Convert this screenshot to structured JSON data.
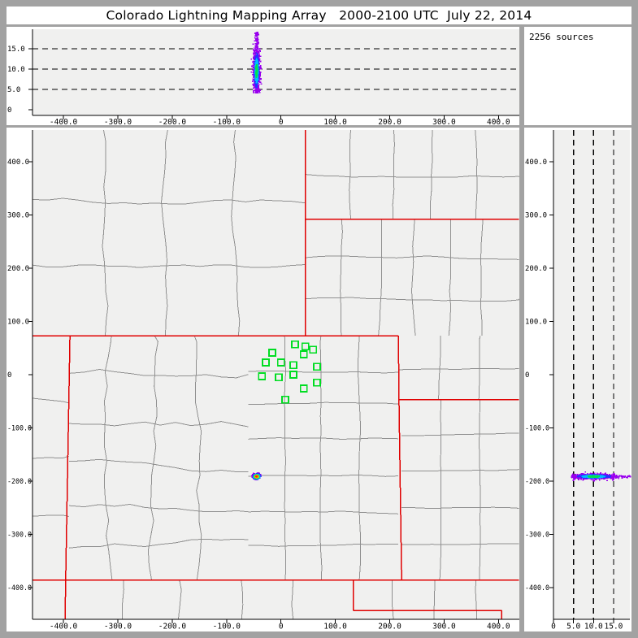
{
  "window": {
    "title": "Colorado Lightning Mapping Array   2000-2100 UTC  July 22, 2014"
  },
  "sources": {
    "label": "2256 sources",
    "count": 2256
  },
  "colors": {
    "frame_gray": "#a2a2a2",
    "panel_white": "#ffffff",
    "plot_bg": "#f0f0ef",
    "axis_black": "#000000",
    "county_gray": "#8f8f8f",
    "state_border_red": "#e00000",
    "station_green": "#00dd22",
    "density_palette": [
      "#9900ee",
      "#2233ff",
      "#00bbff",
      "#00e050",
      "#d8e000",
      "#ff9900",
      "#ff2a00"
    ]
  },
  "chart_data": {
    "type": "scatter",
    "description": "Lightning mapping array source density plots: top = altitude vs east-west km, main = plan view map with county/state borders and station markers, right = north-south km vs altitude.",
    "panels": [
      {
        "id": "altitude-vs-ew",
        "x_range_km": [
          -457,
          438
        ],
        "alt_range_km": [
          -1.6,
          19.6
        ],
        "x_ticks": {
          "values": [
            -400,
            -300,
            -200,
            -100,
            0,
            100,
            200,
            300,
            400
          ],
          "labels": [
            "-400.0",
            "-300.0",
            "-200.0",
            "-100.0",
            "0",
            "100.0",
            "200.0",
            "300.0",
            "400.0"
          ]
        },
        "alt_ticks": {
          "values": [
            0,
            5,
            10,
            15
          ],
          "labels": [
            "0",
            "5.0",
            "10.0",
            "15.0"
          ]
        },
        "dashed_gridlines_alt": [
          5,
          10,
          15
        ]
      },
      {
        "id": "plan-view",
        "x_range_km": [
          -457,
          438
        ],
        "y_range_km": [
          -460,
          460
        ],
        "x_ticks": {
          "values": [
            -400,
            -300,
            -200,
            -100,
            0,
            100,
            200,
            300,
            400
          ],
          "labels": [
            "-400.0",
            "-300.0",
            "-200.0",
            "-100.0",
            "0",
            "100.0",
            "200.0",
            "300.0",
            "400.0"
          ]
        },
        "y_ticks": {
          "values": [
            400,
            300,
            200,
            100,
            0,
            -100,
            -200,
            -300,
            -400
          ],
          "labels": [
            "400.0",
            "300.0",
            "200.0",
            "100.0",
            "0",
            "-100.0",
            "-200.0",
            "-300.0",
            "-400.0"
          ]
        }
      },
      {
        "id": "altitude-vs-ns",
        "alt_range_km": [
          0,
          19.2
        ],
        "y_range_km": [
          -460,
          460
        ],
        "alt_ticks": {
          "values": [
            0,
            5,
            10,
            15
          ],
          "labels": [
            "0",
            "5.0",
            "10.0",
            "15.0"
          ]
        },
        "y_ticks": {
          "values": [
            400,
            300,
            200,
            100,
            0,
            -100,
            -200,
            -300,
            -400
          ],
          "labels": [
            "400.0",
            "300.0",
            "200.0",
            "100.0",
            "0",
            "-100.0",
            "-200.0",
            "-300.0",
            "-400.0"
          ]
        },
        "dashed_gridlines_alt": [
          5,
          10,
          15
        ]
      }
    ],
    "lightning_flash": {
      "x_km": -46,
      "y_km": -190,
      "alt_km": 9.8,
      "x_sigma_km": 3.0,
      "y_sigma_km": 2.3,
      "alt_sigma_km": 2.7,
      "alt_min_km": 4.3,
      "alt_max_km": 19.3,
      "sparse_high_fraction": 0.05,
      "n_points": {
        "top": 880,
        "plan": 496,
        "right": 880
      },
      "total_sources": 2256,
      "seed": 42
    },
    "stations_km": [
      [
        26,
        57
      ],
      [
        45,
        53
      ],
      [
        59,
        47
      ],
      [
        -16,
        41
      ],
      [
        42,
        38
      ],
      [
        -28,
        23
      ],
      [
        0,
        23
      ],
      [
        23,
        18
      ],
      [
        66,
        15
      ],
      [
        -35,
        -3
      ],
      [
        -4,
        -5
      ],
      [
        23,
        0
      ],
      [
        66,
        -15
      ],
      [
        42,
        -26
      ],
      [
        8,
        -47
      ]
    ],
    "state_borders_km": [
      [
        [
          45,
          460
        ],
        [
          45,
          73
        ]
      ],
      [
        [
          45,
          292
        ],
        [
          438,
          292
        ]
      ],
      [
        [
          -457,
          73
        ],
        [
          216,
          73
        ]
      ],
      [
        [
          216,
          73
        ],
        [
          217,
          -47
        ]
      ],
      [
        [
          217,
          -47
        ],
        [
          438,
          -47
        ]
      ],
      [
        [
          217,
          -47
        ],
        [
          222,
          -386
        ]
      ],
      [
        [
          -388,
          73
        ],
        [
          -396,
          -386
        ]
      ],
      [
        [
          -396,
          -386
        ],
        [
          -397,
          -460
        ]
      ],
      [
        [
          -457,
          -386
        ],
        [
          438,
          -386
        ]
      ],
      [
        [
          133,
          -386
        ],
        [
          133,
          -443
        ]
      ],
      [
        [
          133,
          -443
        ],
        [
          406,
          -443
        ]
      ],
      [
        [
          406,
          -443
        ],
        [
          406,
          -460
        ]
      ]
    ],
    "county_regions": [
      {
        "x": [
          -457,
          45
        ],
        "y": [
          73,
          460
        ],
        "nx": 4,
        "ny": 3,
        "wig": 9
      },
      {
        "x": [
          45,
          438
        ],
        "y": [
          292,
          460
        ],
        "nx": 5,
        "ny": 2,
        "wig": 5
      },
      {
        "x": [
          45,
          438
        ],
        "y": [
          73,
          292
        ],
        "nx": 6,
        "ny": 3,
        "wig": 5
      },
      {
        "x": [
          216,
          438
        ],
        "y": [
          -47,
          73
        ],
        "nx": 3,
        "ny": 2,
        "wig": 4
      },
      {
        "x": [
          222,
          438
        ],
        "y": [
          -386,
          -47
        ],
        "nx": 3,
        "ny": 5,
        "wig": 3
      },
      {
        "x": [
          -60,
          216
        ],
        "y": [
          -386,
          73
        ],
        "nx": 4,
        "ny": 7,
        "wig": 4
      },
      {
        "x": [
          -390,
          -60
        ],
        "y": [
          -386,
          73
        ],
        "nx": 4,
        "ny": 6,
        "wig": 13
      },
      {
        "x": [
          -457,
          -390
        ],
        "y": [
          -386,
          73
        ],
        "nx": 1,
        "ny": 4,
        "wig": 8
      },
      {
        "x": [
          -396,
          133
        ],
        "y": [
          -460,
          -386
        ],
        "nx": 5,
        "ny": 1,
        "wig": 7
      },
      {
        "x": [
          133,
          438
        ],
        "y": [
          -460,
          -386
        ],
        "nx": 4,
        "ny": 1,
        "wig": 5
      }
    ]
  }
}
